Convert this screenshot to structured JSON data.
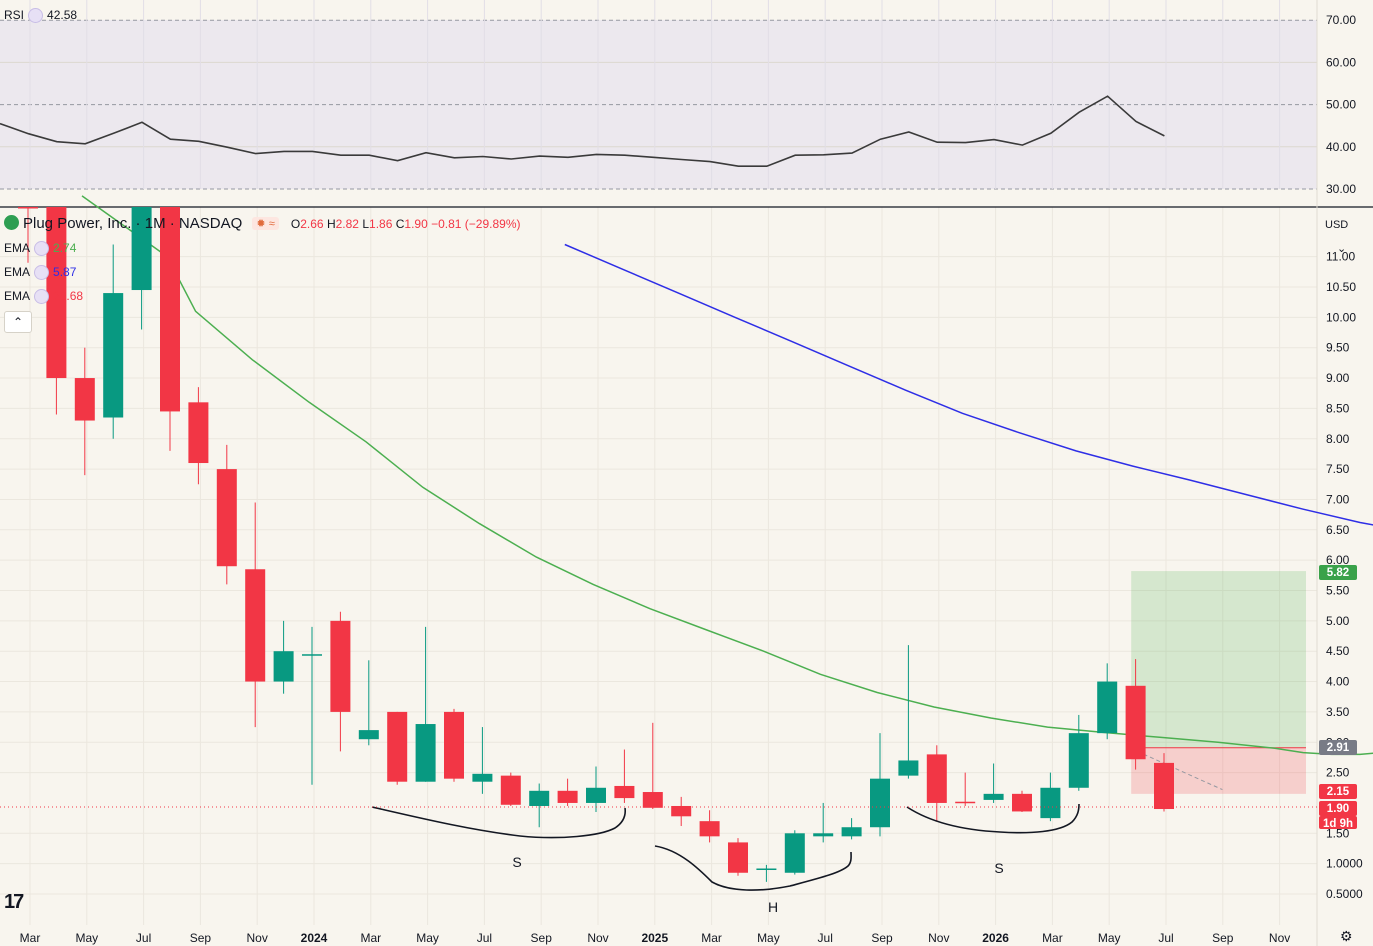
{
  "rsi_panel": {
    "label": "RSI",
    "value": "42.58",
    "axis_ticks": [
      "70.00",
      "60.00",
      "50.00",
      "40.00",
      "30.00"
    ]
  },
  "main_panel": {
    "symbol_title": "Plug Power, Inc. · 1M · NASDAQ",
    "open_label": "O",
    "open_value": "2.66",
    "high_label": "H",
    "high_value": "2.82",
    "low_label": "L",
    "low_value": "1.86",
    "close_label": "C",
    "close_value": "1.90",
    "change": "−0.81 (−29.89%)",
    "currency": "USD",
    "collapse_icon": "chevron-up-icon",
    "ema": [
      {
        "label": "EMA",
        "value": "2.74",
        "color": "#4caf50"
      },
      {
        "label": "EMA",
        "value": "5.87",
        "color": "#2e2ee6"
      },
      {
        "label": "EMA",
        "value": "26.68",
        "color": "#f23645"
      }
    ],
    "price_ticks": [
      "11.00",
      "10.50",
      "10.00",
      "9.50",
      "9.00",
      "8.50",
      "8.00",
      "7.50",
      "7.00",
      "6.50",
      "6.00",
      "5.50",
      "5.00",
      "4.50",
      "4.00",
      "3.50",
      "3.00",
      "2.50",
      "1.50",
      "1.0000",
      "0.5000"
    ],
    "price_tags": [
      {
        "value": "5.82",
        "color": "#3aa24a"
      },
      {
        "value": "2.91",
        "color": "#787b86"
      },
      {
        "value": "2.15",
        "color": "#f23645"
      },
      {
        "value": "1.90",
        "color": "#f23645"
      },
      {
        "value": "1d 9h",
        "color": "#f23645"
      }
    ],
    "pattern_labels": [
      "S",
      "H",
      "S"
    ],
    "x_ticks": [
      "Mar",
      "May",
      "Jul",
      "Sep",
      "Nov",
      "2024",
      "Mar",
      "May",
      "Jul",
      "Sep",
      "Nov",
      "2025",
      "Mar",
      "May",
      "Jul",
      "Sep",
      "Nov",
      "2026",
      "Mar",
      "May",
      "Jul",
      "Sep",
      "Nov"
    ]
  },
  "chart_data": {
    "type": "candlestick",
    "interval": "1M",
    "candles": [
      {
        "o": 12.3,
        "h": 12.9,
        "l": 10.9,
        "c": 12.0
      },
      {
        "o": 12.0,
        "h": 12.4,
        "l": 8.4,
        "c": 9.0
      },
      {
        "o": 9.0,
        "h": 9.5,
        "l": 7.4,
        "c": 8.3
      },
      {
        "o": 8.35,
        "h": 11.2,
        "l": 8.0,
        "c": 10.4
      },
      {
        "o": 10.45,
        "h": 12.1,
        "l": 9.8,
        "c": 12.0
      },
      {
        "o": 12.0,
        "h": 12.4,
        "l": 7.8,
        "c": 8.45
      },
      {
        "o": 8.6,
        "h": 8.85,
        "l": 7.25,
        "c": 7.6
      },
      {
        "o": 7.5,
        "h": 7.9,
        "l": 5.6,
        "c": 5.9
      },
      {
        "o": 5.85,
        "h": 6.95,
        "l": 3.25,
        "c": 4.0
      },
      {
        "o": 4.0,
        "h": 5.0,
        "l": 3.8,
        "c": 4.5
      },
      {
        "o": 4.45,
        "h": 4.9,
        "l": 2.3,
        "c": 4.45
      },
      {
        "o": 5.0,
        "h": 5.15,
        "l": 2.85,
        "c": 3.5
      },
      {
        "o": 3.05,
        "h": 4.35,
        "l": 2.95,
        "c": 3.2
      },
      {
        "o": 3.5,
        "h": 3.5,
        "l": 2.3,
        "c": 2.35
      },
      {
        "o": 2.35,
        "h": 4.9,
        "l": 2.35,
        "c": 3.3
      },
      {
        "o": 3.5,
        "h": 3.55,
        "l": 2.35,
        "c": 2.4
      },
      {
        "o": 2.35,
        "h": 3.25,
        "l": 2.15,
        "c": 2.48
      },
      {
        "o": 2.45,
        "h": 2.5,
        "l": 1.95,
        "c": 1.97
      },
      {
        "o": 1.95,
        "h": 2.32,
        "l": 1.6,
        "c": 2.2
      },
      {
        "o": 2.2,
        "h": 2.4,
        "l": 1.95,
        "c": 2.0
      },
      {
        "o": 2.0,
        "h": 2.6,
        "l": 1.85,
        "c": 2.25
      },
      {
        "o": 2.28,
        "h": 2.88,
        "l": 2.0,
        "c": 2.08
      },
      {
        "o": 2.18,
        "h": 3.32,
        "l": 1.9,
        "c": 1.92
      },
      {
        "o": 1.95,
        "h": 2.1,
        "l": 1.62,
        "c": 1.78
      },
      {
        "o": 1.7,
        "h": 1.88,
        "l": 1.35,
        "c": 1.45
      },
      {
        "o": 1.35,
        "h": 1.42,
        "l": 0.8,
        "c": 0.85
      },
      {
        "o": 0.9,
        "h": 0.98,
        "l": 0.7,
        "c": 0.92
      },
      {
        "o": 0.85,
        "h": 1.55,
        "l": 0.82,
        "c": 1.5
      },
      {
        "o": 1.45,
        "h": 2.0,
        "l": 1.35,
        "c": 1.5
      },
      {
        "o": 1.45,
        "h": 1.75,
        "l": 1.4,
        "c": 1.6
      },
      {
        "o": 1.6,
        "h": 3.15,
        "l": 1.45,
        "c": 2.4
      },
      {
        "o": 2.45,
        "h": 4.6,
        "l": 2.4,
        "c": 2.7
      },
      {
        "o": 2.8,
        "h": 2.95,
        "l": 1.7,
        "c": 2.0
      },
      {
        "o": 2.02,
        "h": 2.5,
        "l": 1.95,
        "c": 2.0
      },
      {
        "o": 2.05,
        "h": 2.65,
        "l": 2.0,
        "c": 2.15
      },
      {
        "o": 2.15,
        "h": 2.2,
        "l": 1.85,
        "c": 1.86
      },
      {
        "o": 1.75,
        "h": 2.5,
        "l": 1.7,
        "c": 2.25
      },
      {
        "o": 2.25,
        "h": 3.45,
        "l": 2.2,
        "c": 3.15
      },
      {
        "o": 3.15,
        "h": 4.3,
        "l": 3.05,
        "c": 4.0
      },
      {
        "o": 3.93,
        "h": 4.37,
        "l": 2.55,
        "c": 2.72
      },
      {
        "o": 2.66,
        "h": 2.82,
        "l": 1.86,
        "c": 1.9
      }
    ],
    "ema_fast": [
      [
        10,
        12.0
      ],
      [
        13,
        11.0
      ],
      [
        14,
        10.1
      ],
      [
        16,
        9.3
      ],
      [
        18,
        8.6
      ],
      [
        20,
        7.95
      ],
      [
        22,
        7.2
      ],
      [
        24,
        6.6
      ],
      [
        26,
        6.05
      ],
      [
        28,
        5.6
      ],
      [
        30,
        5.2
      ],
      [
        32,
        4.85
      ],
      [
        34,
        4.5
      ],
      [
        36,
        4.12
      ],
      [
        38,
        3.82
      ],
      [
        40,
        3.58
      ],
      [
        42,
        3.4
      ],
      [
        44,
        3.25
      ],
      [
        46,
        3.16
      ],
      [
        48,
        3.08
      ],
      [
        50,
        3.0
      ],
      [
        52,
        2.9
      ],
      [
        53,
        2.83
      ],
      [
        54,
        2.8
      ],
      [
        55,
        2.8
      ],
      [
        56,
        2.84
      ],
      [
        57,
        2.84
      ],
      [
        58,
        2.84
      ],
      [
        58.5,
        2.78
      ]
    ],
    "ema_slow": [
      [
        27,
        11.2
      ],
      [
        29,
        10.8
      ],
      [
        31,
        10.4
      ],
      [
        33,
        10.0
      ],
      [
        35,
        9.6
      ],
      [
        37,
        9.2
      ],
      [
        39,
        8.8
      ],
      [
        41,
        8.42
      ],
      [
        43,
        8.1
      ],
      [
        45,
        7.8
      ],
      [
        47,
        7.55
      ],
      [
        49,
        7.32
      ],
      [
        51,
        7.08
      ],
      [
        53,
        6.84
      ],
      [
        55,
        6.62
      ],
      [
        57,
        6.45
      ],
      [
        59,
        6.3
      ],
      [
        61,
        6.18
      ],
      [
        63,
        6.1
      ],
      [
        65,
        5.99
      ],
      [
        66,
        5.87
      ]
    ],
    "rsi": [
      45.5,
      43.1,
      41.2,
      40.7,
      43.2,
      45.8,
      41.8,
      41.3,
      39.9,
      38.4,
      38.9,
      38.9,
      38.0,
      38.0,
      36.7,
      38.6,
      37.4,
      37.7,
      37.1,
      37.8,
      37.5,
      38.2,
      38.0,
      37.5,
      37.0,
      36.5,
      35.4,
      35.4,
      38.0,
      38.1,
      38.5,
      41.8,
      43.5,
      41.1,
      41.0,
      41.7,
      40.4,
      43.2,
      48.2,
      52.0,
      46.0,
      42.58
    ],
    "position": {
      "target": 5.82,
      "entry": 2.91,
      "stop": 2.15,
      "start_index": 38,
      "end_index": 46
    },
    "rsi_range": [
      30,
      70
    ],
    "price_range": [
      0.35,
      11.4
    ]
  }
}
